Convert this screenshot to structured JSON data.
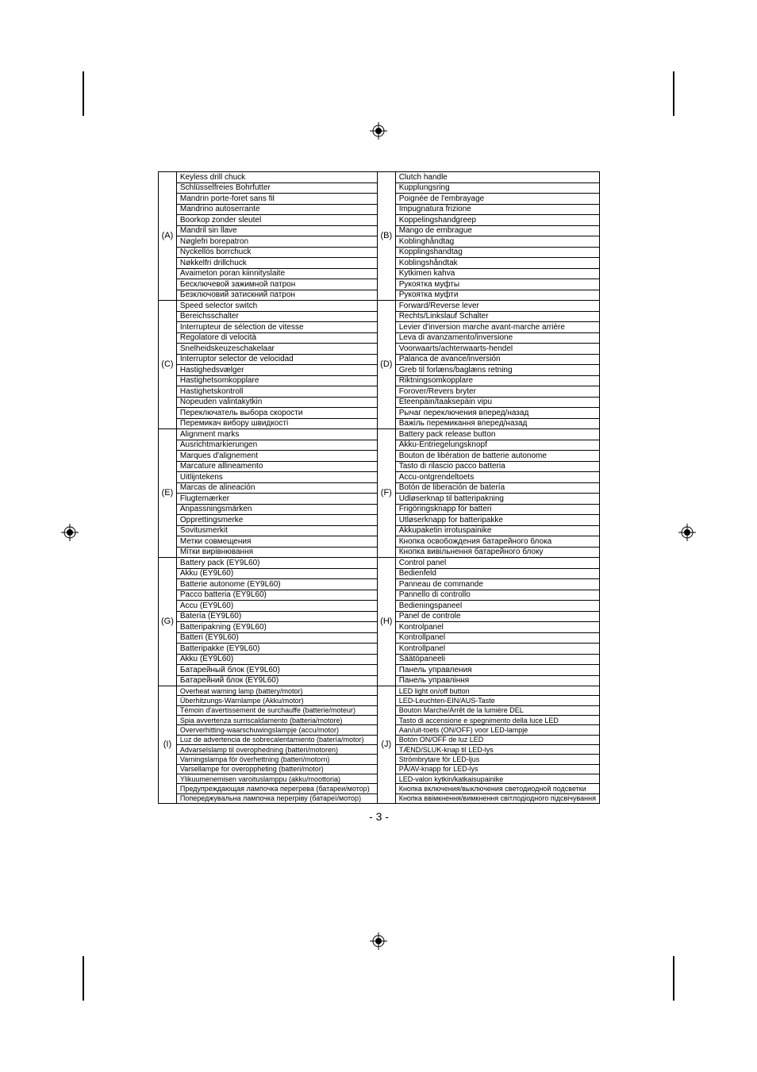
{
  "page_number": "- 3 -",
  "groups": [
    {
      "left_label": "(A)",
      "right_label": "(B)",
      "left": [
        "Keyless drill chuck",
        "Schlüsselfreies Bohrfutter",
        "Mandrin porte-foret sans fil",
        "Mandrino autoserrante",
        "Boorkop zonder sleutel",
        "Mandril sin llave",
        "Nøglefri borepatron",
        "Nyckellös borrchuck",
        "Nøkkelfri drillchuck",
        "Avaimeton poran kiinnityslaite",
        "Бесключевой зажимной патрон",
        "Безключовий затискний патрон"
      ],
      "right": [
        "Clutch handle",
        "Kupplungsring",
        "Poignée de l'embrayage",
        "Impugnatura frizione",
        "Koppelingshandgreep",
        "Mango de embrague",
        "Koblinghåndtag",
        "Kopplingshandtag",
        "Koblingshåndtak",
        "Kytkimen kahva",
        "Рукоятка муфты",
        "Рукоятка муфти"
      ]
    },
    {
      "left_label": "(C)",
      "right_label": "(D)",
      "left": [
        "Speed selector switch",
        "Bereichsschalter",
        "Interrupteur de sélection de vitesse",
        "Regolatore di velocità",
        "Snelheidskeuzeschakelaar",
        "Interruptor selector de velocidad",
        "Hastighedsvælger",
        "Hastighetsomkopplare",
        "Hastighetskontroll",
        "Nopeuden valintakytkin",
        "Переключатель выбора скорости",
        "Перемикач вибору швидкості"
      ],
      "right": [
        "Forward/Reverse lever",
        "Rechts/Linkslauf Schalter",
        "Levier d'inversion marche avant-marche arrière",
        "Leva di avanzamento/inversione",
        "Voorwaarts/achterwaarts-hendel",
        "Palanca de avance/inversión",
        "Greb til forlæns/baglæns retning",
        "Riktningsomkopplare",
        "Forover/Revers bryter",
        "Eteenpäin/taaksepäin vipu",
        "Рычаг переключения вперед/назад",
        "Важіль перемикання вперед/назад"
      ]
    },
    {
      "left_label": "(E)",
      "right_label": "(F)",
      "left": [
        "Alignment marks",
        "Ausrichtmarkierungen",
        "Marques d'alignement",
        "Marcature allineamento",
        "Uitlijntekens",
        "Marcas de alineación",
        "Flugtemærker",
        "Anpassningsmärken",
        "Opprettingsmerke",
        "Sovitusmerkit",
        "Метки совмещения",
        "Мітки вирівнювання"
      ],
      "right": [
        "Battery pack release button",
        "Akku-Entriegelungsknopf",
        "Bouton de libération de batterie autonome",
        "Tasto di rilascio pacco batteria",
        "Accu-ontgrendeltoets",
        "Botón de liberación de batería",
        "Udløserknap til batteripakning",
        "Frigöringsknapp för batteri",
        "Utløserknapp for batteripakke",
        "Akkupaketin irrotuspainike",
        "Кнопка освобождения батарейного блока",
        "Кнопка вивільнення батарейного блоку"
      ]
    },
    {
      "left_label": "(G)",
      "right_label": "(H)",
      "left": [
        "Battery pack (EY9L60)",
        "Akku (EY9L60)",
        "Batterie autonome (EY9L60)",
        "Pacco batteria (EY9L60)",
        "Accu (EY9L60)",
        "Batería (EY9L60)",
        "Batteripakning (EY9L60)",
        "Batteri (EY9L60)",
        "Batteripakke (EY9L60)",
        "Akku (EY9L60)",
        "Батарейный блок (EY9L60)",
        "Батарейний блок (EY9L60)"
      ],
      "right": [
        "Control panel",
        "Bedienfeld",
        "Panneau de commande",
        "Pannello di controllo",
        "Bedieningspaneel",
        "Panel de controle",
        "Kontrolpanel",
        "Kontrollpanel",
        "Kontrollpanel",
        "Säätöpaneeli",
        "Панель управления",
        "Панель управління"
      ]
    },
    {
      "left_label": "(I)",
      "right_label": "(J)",
      "small": true,
      "left": [
        "Overheat warning lamp (battery/motor)",
        "Überhitzungs-Warnlampe (Akku/motor)",
        "Témoin d'avertissement de surchauffe (batterie/moteur)",
        "Spia avvertenza surriscaldamento (batteria/motore)",
        "Oververhitting-waarschuwingslampje (accu/motor)",
        "Luz de advertencia de sobrecalentamiento (batería/motor)",
        "Advarselslamp til overophedning (batteri/motoren)",
        "Varningslampa för överhettning (batteri/motorn)",
        "Varsellampe for overoppheting (batteri/motor)",
        "Ylikuumenemisen varoituslamppu (akku/moottoria)",
        "Предупреждающая лампочка перегрева (батареи/мотор)",
        "Попереджувальна лампочка перегріву (батареї/мотор)"
      ],
      "right": [
        "LED light on/off button",
        "LED-Leuchten-EIN/AUS-Taste",
        "Bouton Marche/Arrêt de la lumière DEL",
        "Tasto di accensione e spegnimento della luce LED",
        "Aan/uit-toets (ON/OFF) voor LED-lampje",
        "Botón ON/OFF de luz LED",
        "TÆND/SLUK-knap til LED-lys",
        "Strömbrytare för LED-ljus",
        "PÅ/AV-knapp for LED-lys",
        "LED-valon kytkin/katkaisupainike",
        "Кнопка включения/выключения светодиодной подсветки",
        "Кнопка ввімкнення/вимкнення світлодіодного підсвічування"
      ]
    }
  ]
}
